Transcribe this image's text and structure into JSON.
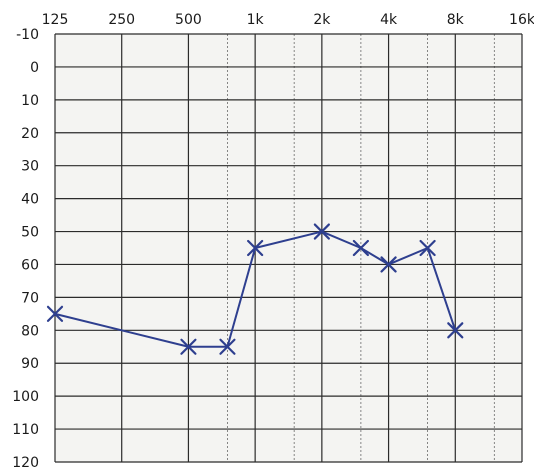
{
  "chart_data": {
    "type": "line",
    "title": "",
    "xlabel": "",
    "ylabel": "",
    "x_scale": "log2",
    "y_inverted": true,
    "xlim": [
      125,
      16000
    ],
    "ylim": [
      -10,
      120
    ],
    "grid": true,
    "x_ticks": [
      {
        "value": 125,
        "label": "125"
      },
      {
        "value": 250,
        "label": "250"
      },
      {
        "value": 500,
        "label": "500"
      },
      {
        "value": 1000,
        "label": "1k"
      },
      {
        "value": 2000,
        "label": "2k"
      },
      {
        "value": 4000,
        "label": "4k"
      },
      {
        "value": 8000,
        "label": "8k"
      },
      {
        "value": 16000,
        "label": "16k"
      }
    ],
    "x_minor_ticks": [
      750,
      1500,
      3000,
      6000,
      12000
    ],
    "y_ticks": [
      {
        "value": -10,
        "label": "-10"
      },
      {
        "value": 0,
        "label": "0"
      },
      {
        "value": 10,
        "label": "10"
      },
      {
        "value": 20,
        "label": "20"
      },
      {
        "value": 30,
        "label": "30"
      },
      {
        "value": 40,
        "label": "40"
      },
      {
        "value": 50,
        "label": "50"
      },
      {
        "value": 60,
        "label": "60"
      },
      {
        "value": 70,
        "label": "70"
      },
      {
        "value": 80,
        "label": "80"
      },
      {
        "value": 90,
        "label": "90"
      },
      {
        "value": 100,
        "label": "100"
      },
      {
        "value": 110,
        "label": "110"
      },
      {
        "value": 120,
        "label": "120"
      }
    ],
    "marker": "x",
    "series_color": "#2e3f8f",
    "series": [
      {
        "name": "",
        "points": [
          {
            "x": 125,
            "y": 75
          },
          {
            "x": 500,
            "y": 85
          },
          {
            "x": 750,
            "y": 85
          },
          {
            "x": 1000,
            "y": 55
          },
          {
            "x": 2000,
            "y": 50
          },
          {
            "x": 3000,
            "y": 55
          },
          {
            "x": 4000,
            "y": 60
          },
          {
            "x": 6000,
            "y": 55
          },
          {
            "x": 8000,
            "y": 80
          }
        ]
      }
    ]
  }
}
